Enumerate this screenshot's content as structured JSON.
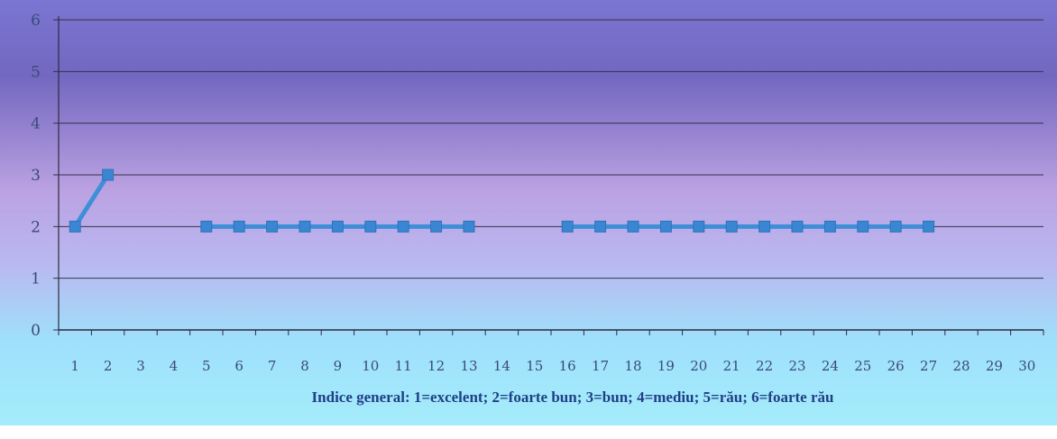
{
  "chart_data": {
    "type": "line",
    "title": "",
    "xlabel": "Indice general: 1=excelent; 2=foarte bun; 3=bun; 4=mediu; 5=rău; 6=foarte rău",
    "ylabel": "",
    "ylim": [
      0,
      6
    ],
    "yticks": [
      "0",
      "1",
      "2",
      "3",
      "4",
      "5",
      "6"
    ],
    "categories": [
      "1",
      "2",
      "3",
      "4",
      "5",
      "6",
      "7",
      "8",
      "9",
      "10",
      "11",
      "12",
      "13",
      "14",
      "15",
      "16",
      "17",
      "18",
      "19",
      "20",
      "21",
      "22",
      "23",
      "24",
      "25",
      "26",
      "27",
      "28",
      "29",
      "30"
    ],
    "series": [
      {
        "values": [
          2,
          3,
          null,
          null,
          2,
          2,
          2,
          2,
          2,
          2,
          2,
          2,
          2,
          null,
          null,
          2,
          2,
          2,
          2,
          2,
          2,
          2,
          2,
          2,
          2,
          2,
          2,
          null,
          null,
          null
        ]
      }
    ],
    "grid": true,
    "legend": "none",
    "colors": {
      "line": "#3f8fd8",
      "marker": "#3b86d2",
      "gridline": "#33334a",
      "background_top": "#6f66c4",
      "background_mid": "#c3a6e6",
      "background_bottom": "#8fe2fb"
    }
  }
}
